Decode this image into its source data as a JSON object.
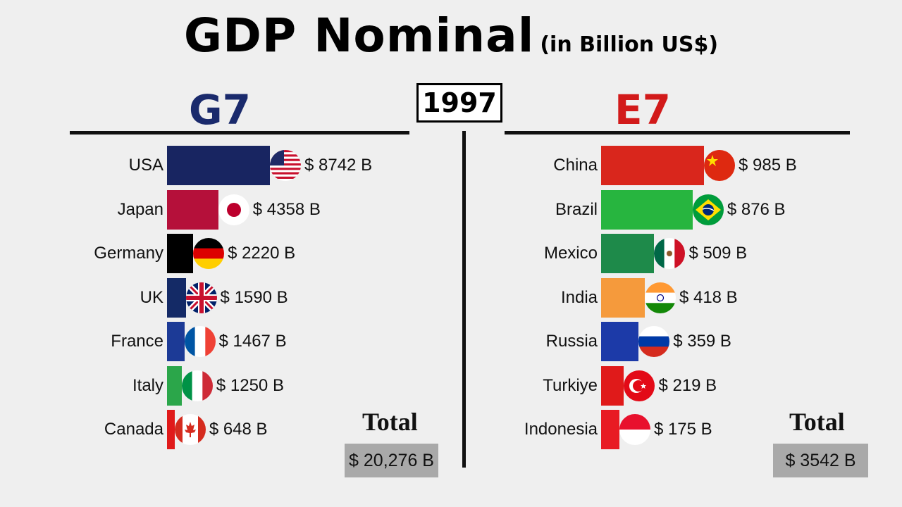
{
  "title": "GDP Nominal",
  "subtitle": "(in Billion US$)",
  "year": "1997",
  "chart_data": [
    {
      "type": "bar",
      "group": "G7",
      "categories": [
        "USA",
        "Japan",
        "Germany",
        "UK",
        "France",
        "Italy",
        "Canada"
      ],
      "values": [
        8742,
        4358,
        2220,
        1590,
        1467,
        1250,
        648
      ],
      "value_labels": [
        "$ 8742 B",
        "$ 4358 B",
        "$ 2220 B",
        "$ 1590 B",
        "$ 1467 B",
        "$ 1250 B",
        "$ 648 B"
      ],
      "colors": [
        "#182561",
        "#b5103a",
        "#000000",
        "#142a66",
        "#1c3a96",
        "#2ba64a",
        "#e01a1a"
      ],
      "flags": [
        "usa-flag-icon",
        "japan-flag-icon",
        "germany-flag-icon",
        "uk-flag-icon",
        "france-flag-icon",
        "italy-flag-icon",
        "canada-flag-icon"
      ],
      "title_color": "#1a2a6c",
      "total_label": "Total",
      "total_value": "$ 20,276 B"
    },
    {
      "type": "bar",
      "group": "E7",
      "categories": [
        "China",
        "Brazil",
        "Mexico",
        "India",
        "Russia",
        "Turkiye",
        "Indonesia"
      ],
      "values": [
        985,
        876,
        509,
        418,
        359,
        219,
        175
      ],
      "value_labels": [
        "$ 985 B",
        "$ 876 B",
        "$ 509 B",
        "$ 418 B",
        "$ 359 B",
        "$ 219 B",
        "$ 175 B"
      ],
      "colors": [
        "#d9261c",
        "#27b53f",
        "#1e8a4a",
        "#f59a3c",
        "#1c3aa8",
        "#e01a1a",
        "#e81b23"
      ],
      "flags": [
        "china-flag-icon",
        "brazil-flag-icon",
        "mexico-flag-icon",
        "india-flag-icon",
        "russia-flag-icon",
        "turkey-flag-icon",
        "indonesia-flag-icon"
      ],
      "title_color": "#d21a1a",
      "total_label": "Total",
      "total_value": "$ 3542 B"
    }
  ]
}
